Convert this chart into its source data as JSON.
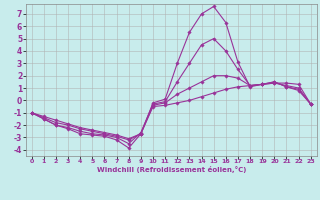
{
  "xlabel": "Windchill (Refroidissement éolien,°C)",
  "background_color": "#c8ecec",
  "grid_color": "#b0b0b0",
  "line_color": "#993399",
  "x_ticks": [
    0,
    1,
    2,
    3,
    4,
    5,
    6,
    7,
    8,
    9,
    10,
    11,
    12,
    13,
    14,
    15,
    16,
    17,
    18,
    19,
    20,
    21,
    22,
    23
  ],
  "y_ticks": [
    -4,
    -3,
    -2,
    -1,
    0,
    1,
    2,
    3,
    4,
    5,
    6,
    7
  ],
  "xlim": [
    -0.5,
    23.5
  ],
  "ylim": [
    -4.5,
    7.8
  ],
  "curve_main": [
    -1,
    -1.5,
    -2,
    -2.3,
    -2.7,
    -2.8,
    -2.9,
    -3.2,
    -3.85,
    -2.7,
    -0.2,
    0.1,
    3.0,
    5.5,
    7.0,
    7.6,
    6.3,
    3.1,
    1.1,
    1.3,
    1.5,
    1.1,
    0.8,
    -0.3
  ],
  "curve_linear": [
    -1,
    -1.3,
    -1.6,
    -1.9,
    -2.2,
    -2.4,
    -2.6,
    -2.8,
    -3.1,
    -2.7,
    -0.5,
    -0.4,
    -0.2,
    0.0,
    0.3,
    0.6,
    0.9,
    1.1,
    1.2,
    1.3,
    1.4,
    1.4,
    1.3,
    -0.3
  ],
  "curve_mid1": [
    -1,
    -1.5,
    -2,
    -2.2,
    -2.5,
    -2.7,
    -2.8,
    -3.0,
    -3.5,
    -2.6,
    -0.3,
    -0.1,
    1.5,
    3.0,
    4.5,
    5.0,
    4.0,
    2.5,
    1.2,
    1.3,
    1.5,
    1.1,
    0.9,
    -0.3
  ],
  "curve_mid2": [
    -1,
    -1.4,
    -1.8,
    -2.0,
    -2.3,
    -2.5,
    -2.7,
    -2.9,
    -3.2,
    -2.7,
    -0.4,
    -0.2,
    0.5,
    1.0,
    1.5,
    2.0,
    2.0,
    1.8,
    1.2,
    1.3,
    1.4,
    1.2,
    1.0,
    -0.3
  ]
}
